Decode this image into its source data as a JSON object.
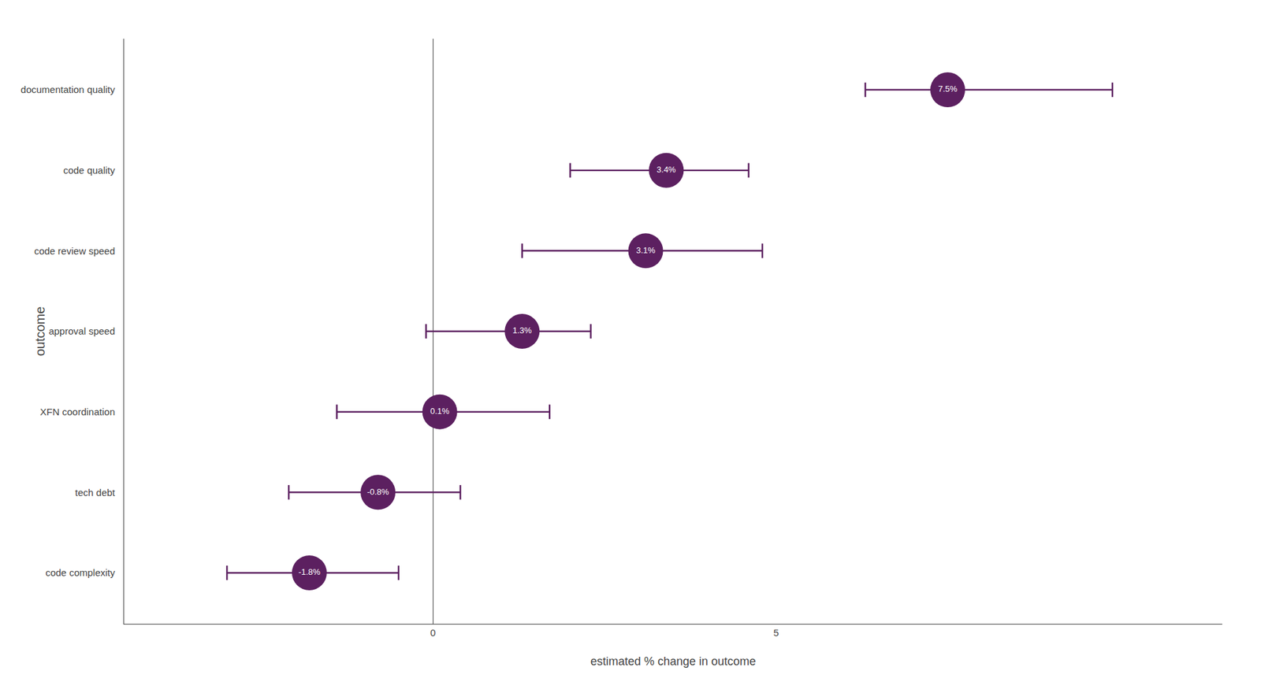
{
  "chart_data": {
    "type": "scatter",
    "categories": [
      "documentation quality",
      "code quality",
      "code review speed",
      "approval speed",
      "XFN coordination",
      "tech debt",
      "code complexity"
    ],
    "values": [
      7.5,
      3.4,
      3.1,
      1.3,
      0.1,
      -0.8,
      -1.8
    ],
    "value_labels": [
      "7.5%",
      "3.4%",
      "3.1%",
      "1.3%",
      "0.1%",
      "-0.8%",
      "-1.8%"
    ],
    "ci_lower": [
      6.3,
      2.0,
      1.3,
      -0.1,
      -1.4,
      -2.1,
      -3.0
    ],
    "ci_upper": [
      9.9,
      4.6,
      4.8,
      2.3,
      1.7,
      0.4,
      -0.5
    ],
    "color": "#5c2060",
    "xlabel": "estimated % change in outcome",
    "ylabel": "outcome",
    "xlim": [
      -4.5,
      11.5
    ],
    "xticks": [
      0,
      5
    ],
    "grid": false,
    "data_labels": true
  }
}
